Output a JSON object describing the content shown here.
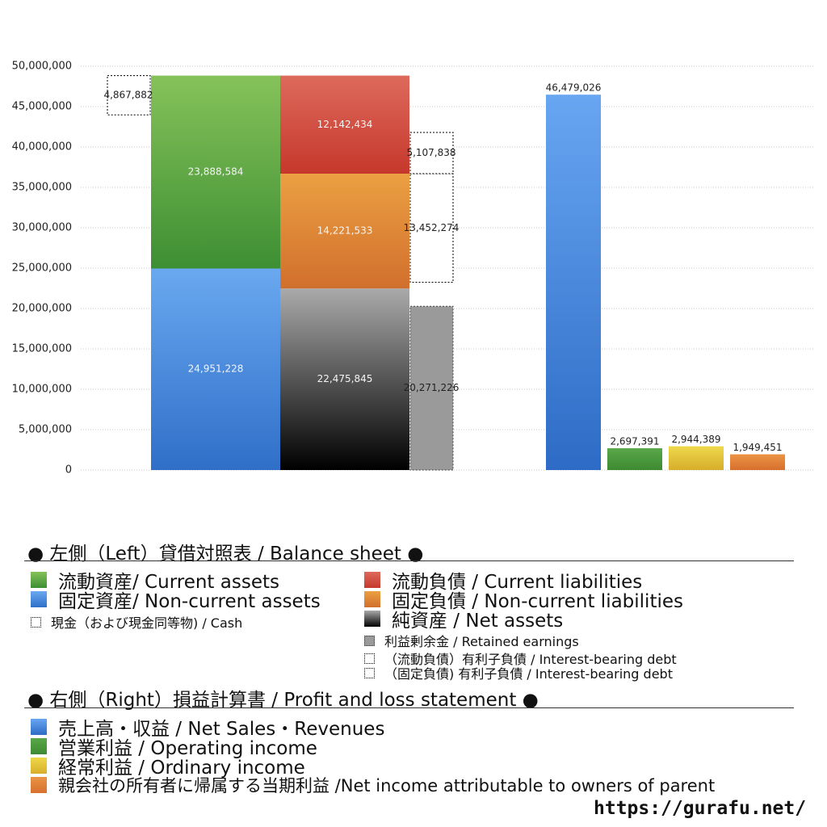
{
  "chart_data": {
    "type": "bar",
    "ylim": [
      0,
      50000000
    ],
    "y_ticks": [
      "0",
      "5,000,000",
      "10,000,000",
      "15,000,000",
      "20,000,000",
      "25,000,000",
      "30,000,000",
      "35,000,000",
      "40,000,000",
      "45,000,000",
      "50,000,000"
    ],
    "grid": true,
    "balance_sheet": {
      "assets": [
        {
          "name": "固定資産/ Non-current assets",
          "value": 24951228,
          "label": "24,951,228",
          "color_top": "#6aa8f0",
          "color_bottom": "#2f6fc8"
        },
        {
          "name": "流動資産/ Current assets",
          "value": 23888584,
          "label": "23,888,584",
          "color_top": "#86c25a",
          "color_bottom": "#3d8f33"
        }
      ],
      "cash": {
        "value": 4867882,
        "label": "4,867,882"
      },
      "liabilities": [
        {
          "name": "純資産 / Net assets",
          "value": 22475845,
          "label": "22,475,845",
          "color_top": "#aaaaaa",
          "color_bottom": "#000000"
        },
        {
          "name": "固定負債 / Non-current liabilities",
          "value": 14221533,
          "label": "14,221,533",
          "color_top": "#eba042",
          "color_bottom": "#d16f2d"
        },
        {
          "name": "流動負債 / Current liabilities",
          "value": 12142434,
          "label": "12,142,434",
          "color_top": "#dd6a5c",
          "color_bottom": "#c6382c"
        }
      ],
      "retained_earnings": {
        "value": 20271226,
        "label": "20,271,226"
      },
      "noncurrent_interest_debt": {
        "value": 13452274,
        "label": "13,452,274"
      },
      "current_interest_debt": {
        "value": 5107838,
        "label": "5,107,838"
      }
    },
    "profit_and_loss": [
      {
        "name": "売上高・収益 / Net Sales・Revenues",
        "value": 46479026,
        "label": "46,479,026",
        "color_top": "#68a6f2",
        "color_bottom": "#2e6bc6"
      },
      {
        "name": "営業利益 / Operating income",
        "value": 2697391,
        "label": "2,697,391",
        "color_top": "#5aa848",
        "color_bottom": "#3d8a33"
      },
      {
        "name": "経常利益 / Ordinary income",
        "value": 2944389,
        "label": "2,944,389",
        "color_top": "#eed84a",
        "color_bottom": "#d7ae2b"
      },
      {
        "name": "親会社の所有者に帰属する当期利益 /Net income attributable to owners of parent",
        "value": 1949451,
        "label": "1,949,451",
        "color_top": "#eb9444",
        "color_bottom": "#d7702e"
      }
    ]
  },
  "legend": {
    "left_title": "● 左側（Left）貸借対照表 / Balance sheet ●",
    "current_assets": "流動資産/ Current assets",
    "noncurrent_assets": "固定資産/ Non-current assets",
    "cash": "現金（および現金同等物) / Cash",
    "current_liabilities": "流動負債 /  Current liabilities",
    "noncurrent_liabilities": "固定負債 / Non-current liabilities",
    "net_assets": "純資産 / Net assets",
    "retained_earnings": "利益剰余金 / Retained earnings",
    "current_interest_debt": "（流動負債）有利子負債 / Interest-bearing debt",
    "noncurrent_interest_debt": "（固定負債) 有利子負債 / Interest-bearing debt",
    "right_title": "● 右側（Right）損益計算書 / Profit and loss statement ●",
    "net_sales": "売上高・収益 / Net Sales・Revenues",
    "operating_income": "営業利益 / Operating income",
    "ordinary_income": "経常利益 / Ordinary income",
    "net_income": "親会社の所有者に帰属する当期利益 /Net income attributable to owners of parent"
  },
  "footer": {
    "url": "https://gurafu.net/"
  }
}
